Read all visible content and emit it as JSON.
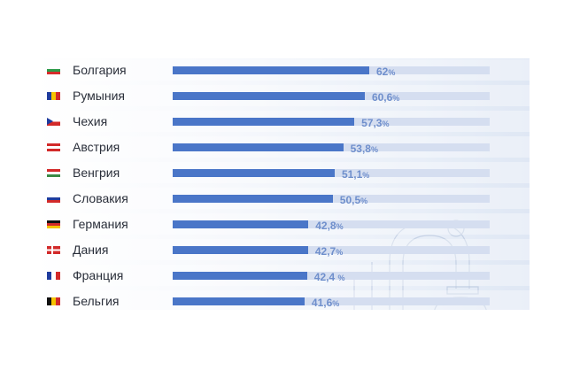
{
  "chart_data": {
    "type": "bar",
    "orientation": "horizontal",
    "title": "",
    "xlabel": "",
    "ylabel": "",
    "xlim": [
      0,
      100
    ],
    "unit": "%",
    "categories": [
      "Болгария",
      "Румыния",
      "Чехия",
      "Австрия",
      "Венгрия",
      "Словакия",
      "Германия",
      "Дания",
      "Франция",
      "Бельгия"
    ],
    "values": [
      62,
      60.6,
      57.3,
      53.8,
      51.1,
      50.5,
      42.8,
      42.7,
      42.4,
      41.6
    ],
    "value_labels": [
      "62",
      "60,6",
      "57,3",
      "53,8",
      "51,1",
      "50,5",
      "42,8",
      "42,7",
      "42,4 ",
      "41,6"
    ],
    "flags": [
      {
        "dir": "h",
        "colors": [
          "#ffffff",
          "#2d9a4a",
          "#d62b2b"
        ]
      },
      {
        "dir": "v",
        "colors": [
          "#1f3c9e",
          "#f5c400",
          "#d22a2a"
        ]
      },
      {
        "dir": "cz",
        "colors": [
          "#ffffff",
          "#d22a2a",
          "#1f3c9e"
        ]
      },
      {
        "dir": "h",
        "colors": [
          "#d22a2a",
          "#ffffff",
          "#d22a2a"
        ]
      },
      {
        "dir": "h",
        "colors": [
          "#d22a2a",
          "#ffffff",
          "#3a8a45"
        ]
      },
      {
        "dir": "h",
        "colors": [
          "#ffffff",
          "#1f3c9e",
          "#d22a2a"
        ]
      },
      {
        "dir": "h",
        "colors": [
          "#111111",
          "#d22a2a",
          "#f5c400"
        ]
      },
      {
        "dir": "dk",
        "colors": [
          "#d22a2a",
          "#ffffff"
        ]
      },
      {
        "dir": "v",
        "colors": [
          "#1f3c9e",
          "#ffffff",
          "#d22a2a"
        ]
      },
      {
        "dir": "v",
        "colors": [
          "#111111",
          "#f5c400",
          "#d22a2a"
        ]
      }
    ],
    "colors": {
      "bar": "#4a76c8",
      "track": "#d5def0",
      "value": "#6f8fcc"
    }
  }
}
